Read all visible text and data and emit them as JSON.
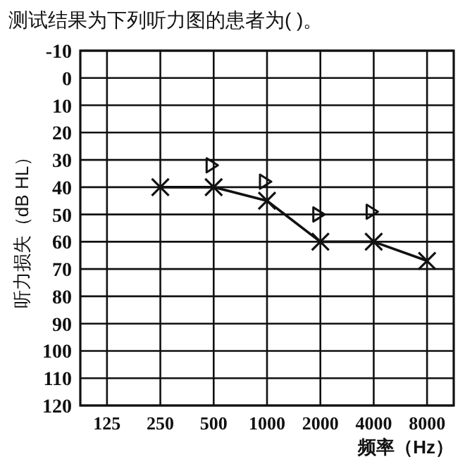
{
  "chart_data": {
    "type": "line",
    "title": "测试结果为下列听力图的患者为(   )。",
    "xlabel": "频率（Hz）",
    "ylabel": "听力损失（dB HL）",
    "categories": [
      "125",
      "250",
      "500",
      "1000",
      "2000",
      "4000",
      "8000"
    ],
    "series": [
      {
        "color": "#111111",
        "marker": "cross",
        "line_style": "solid",
        "values": [
          null,
          40,
          40,
          45,
          60,
          60,
          67
        ]
      },
      {
        "type": "scatter",
        "color": "#111111",
        "marker": "triangle",
        "values": [
          null,
          null,
          32,
          38,
          50,
          49,
          null
        ]
      }
    ],
    "ylim": [
      120,
      -10
    ],
    "yticks": [
      -10,
      0,
      10,
      20,
      30,
      40,
      50,
      60,
      70,
      80,
      90,
      100,
      110,
      120
    ],
    "grid": true
  }
}
